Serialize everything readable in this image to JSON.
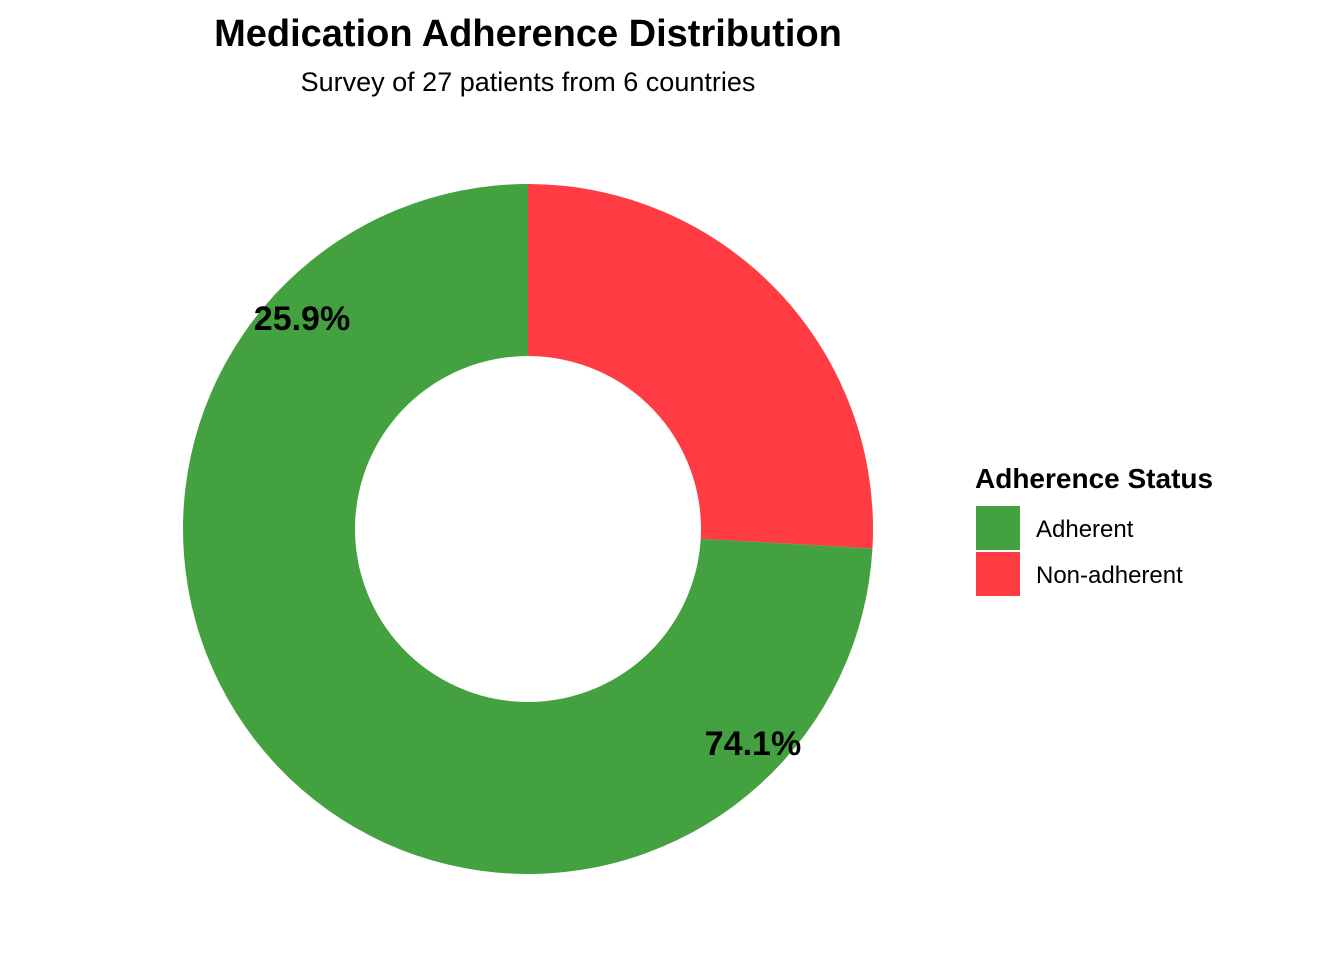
{
  "chart_data": {
    "type": "pie",
    "variant": "donut",
    "title": "Medication Adherence Distribution",
    "subtitle": "Survey of 27 patients from 6 countries",
    "start_angle_deg": 0,
    "direction": "clockwise",
    "slices": [
      {
        "name": "Non-adherent",
        "value": 25.9,
        "label": "25.9%",
        "color": "#FF3B44"
      },
      {
        "name": "Adherent",
        "value": 74.1,
        "label": "74.1%",
        "color": "#43A140"
      }
    ],
    "legend": {
      "title": "Adherence Status",
      "placement": "right",
      "items": [
        {
          "label": "Adherent",
          "color": "#43A140"
        },
        {
          "label": "Non-adherent",
          "color": "#FF3B44"
        }
      ]
    }
  }
}
